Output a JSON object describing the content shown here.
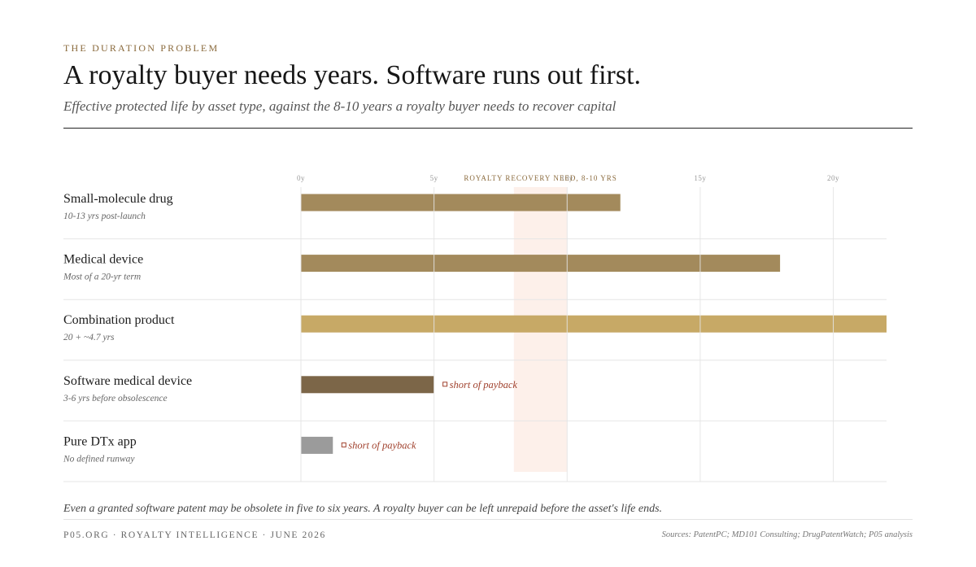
{
  "header": {
    "eyebrow": "THE DURATION PROBLEM",
    "title": "A royalty buyer needs years. Software runs out first.",
    "subtitle": "Effective protected life by asset type, against the 8-10 years a royalty buyer needs to recover capital"
  },
  "chart_data": {
    "type": "bar",
    "orientation": "horizontal",
    "x_ticks": [
      "0y",
      "5y",
      "10y",
      "15y",
      "20y"
    ],
    "x_tick_values": [
      0,
      5,
      10,
      15,
      20
    ],
    "xlim": [
      0,
      22
    ],
    "grid": true,
    "band": {
      "label": "ROYALTY RECOVERY NEED, 8-10 YRS",
      "start": 8,
      "end": 10,
      "color": "#fdf0ea"
    },
    "categories": [
      {
        "label": "Small-molecule drug",
        "sublabel": "10-13 yrs post-launch",
        "value": 12,
        "color": "#a38a5c",
        "note": ""
      },
      {
        "label": "Medical device",
        "sublabel": "Most of a 20-yr term",
        "value": 18,
        "color": "#a38a5c",
        "note": ""
      },
      {
        "label": "Combination product",
        "sublabel": "20 + ~4.7 yrs",
        "value": 22,
        "color": "#c7a966",
        "note": ""
      },
      {
        "label": "Software medical device",
        "sublabel": "3-6 yrs before obsolescence",
        "value": 5,
        "color": "#7c6648",
        "note": "short of payback"
      },
      {
        "label": "Pure DTx app",
        "sublabel": "No defined runway",
        "value": 1.2,
        "color": "#9b9b9b",
        "note": "short of payback"
      }
    ],
    "note_color": "#a0412d"
  },
  "footnote": "Even a granted software patent may be obsolete in five to six years. A royalty buyer can be left unrepaid before the asset's life ends.",
  "footer": {
    "left": "P05.ORG · ROYALTY INTELLIGENCE · JUNE 2026",
    "right": "Sources: PatentPC; MD101 Consulting; DrugPatentWatch; P05 analysis"
  }
}
